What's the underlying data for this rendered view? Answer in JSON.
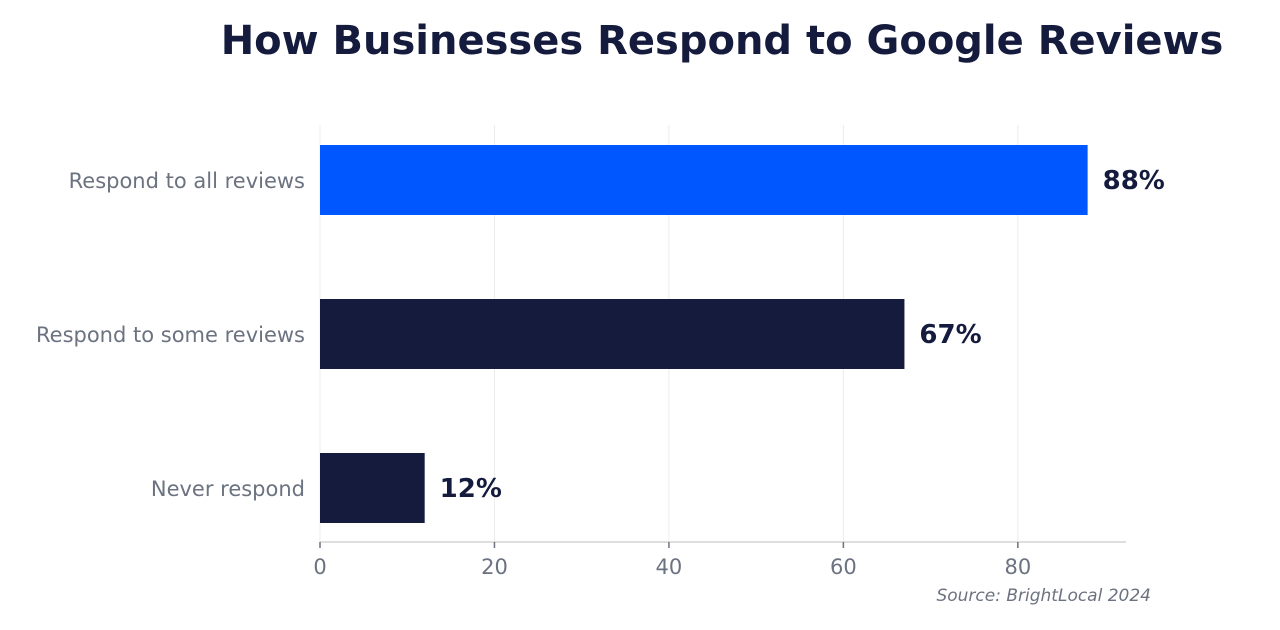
{
  "chart_data": {
    "type": "bar",
    "orientation": "horizontal",
    "title": "How Businesses Respond to Google Reviews",
    "categories": [
      "Respond to all reviews",
      "Respond to some reviews",
      "Never respond"
    ],
    "values": [
      88,
      67,
      12
    ],
    "data_labels": [
      "88%",
      "67%",
      "12%"
    ],
    "colors": [
      "#0057ff",
      "#141b3d",
      "#141b3d"
    ],
    "xlim": [
      0,
      92.4
    ],
    "xticks": [
      0,
      20,
      40,
      60,
      80
    ],
    "xlabel": "",
    "ylabel": "",
    "grid": "vertical",
    "source": "Source: BrightLocal 2024"
  }
}
